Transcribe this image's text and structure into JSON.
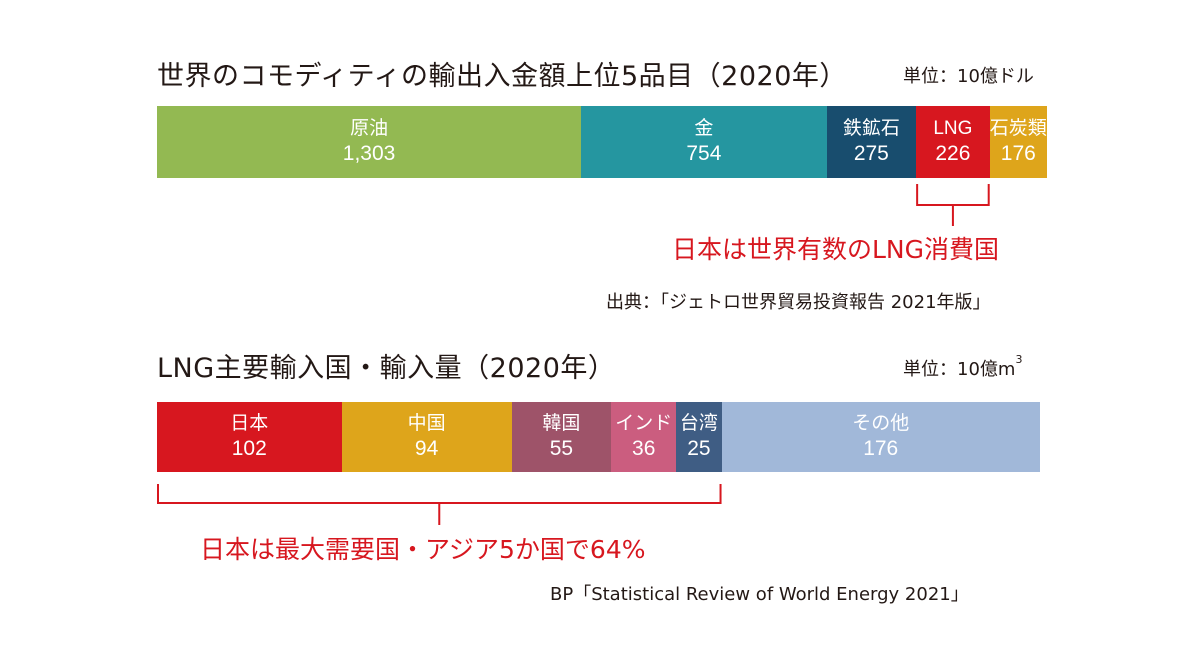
{
  "chart_data": [
    {
      "type": "bar",
      "orientation": "horizontal-stacked",
      "title": "世界のコモディティの輸出入金額上位5品目（2020年）",
      "unit": "単位：10億ドル",
      "categories": [
        "原油",
        "金",
        "鉄鉱石",
        "LNG",
        "石炭類"
      ],
      "values": [
        1303,
        754,
        275,
        226,
        176
      ],
      "value_labels": [
        "1,303",
        "754",
        "275",
        "226",
        "176"
      ],
      "colors": [
        "#93b952",
        "#2596a0",
        "#184d6e",
        "#d7171f",
        "#dea51b"
      ],
      "annotation": {
        "text": "日本は世界有数のLNG消費国",
        "bracket_categories": [
          "LNG"
        ]
      },
      "source": "出典：「ジェトロ世界貿易投資報告 2021年版」"
    },
    {
      "type": "bar",
      "orientation": "horizontal-stacked",
      "title": "LNG主要輸入国・輸入量（2020年）",
      "unit_prefix": "単位：10億m",
      "unit_sup": "3",
      "categories": [
        "日本",
        "中国",
        "韓国",
        "インド",
        "台湾",
        "その他"
      ],
      "values": [
        102,
        94,
        55,
        36,
        25,
        176
      ],
      "value_labels": [
        "102",
        "94",
        "55",
        "36",
        "25",
        "176"
      ],
      "colors": [
        "#d7171f",
        "#dea51b",
        "#9e5369",
        "#cb5d7f",
        "#3f5d84",
        "#a1b8d9"
      ],
      "annotation": {
        "text": "日本は最大需要国・アジア5か国で64%",
        "bracket_categories": [
          "日本",
          "中国",
          "韓国",
          "インド",
          "台湾"
        ]
      },
      "source": "BP「Statistical Review of World Energy 2021」"
    }
  ]
}
